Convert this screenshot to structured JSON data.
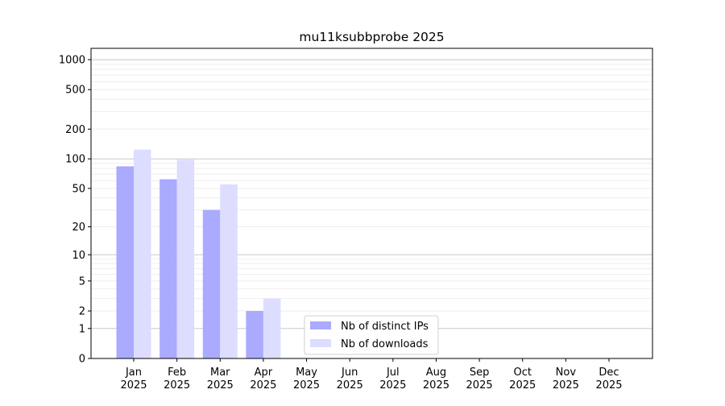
{
  "chart_data": {
    "type": "bar",
    "title": "mu11ksubbprobe 2025",
    "categories": [
      "Jan\n2025",
      "Feb\n2025",
      "Mar\n2025",
      "Apr\n2025",
      "May\n2025",
      "Jun\n2025",
      "Jul\n2025",
      "Aug\n2025",
      "Sep\n2025",
      "Oct\n2025",
      "Nov\n2025",
      "Dec\n2025"
    ],
    "series": [
      {
        "name": "Nb of distinct IPs",
        "color": "#aaaaff",
        "values": [
          84,
          62,
          30,
          2,
          0,
          0,
          0,
          0,
          0,
          0,
          0,
          0
        ]
      },
      {
        "name": "Nb of downloads",
        "color": "#ddddff",
        "values": [
          124,
          98,
          55,
          3,
          0,
          0,
          0,
          0,
          0,
          0,
          0,
          0
        ]
      }
    ],
    "yscale": "symlog",
    "ylim": [
      0,
      1300
    ],
    "yticks": [
      0,
      1,
      2,
      5,
      10,
      20,
      50,
      100,
      200,
      500,
      1000
    ],
    "xlabel": "",
    "ylabel": "",
    "grid": true,
    "legend": "lower-center"
  }
}
